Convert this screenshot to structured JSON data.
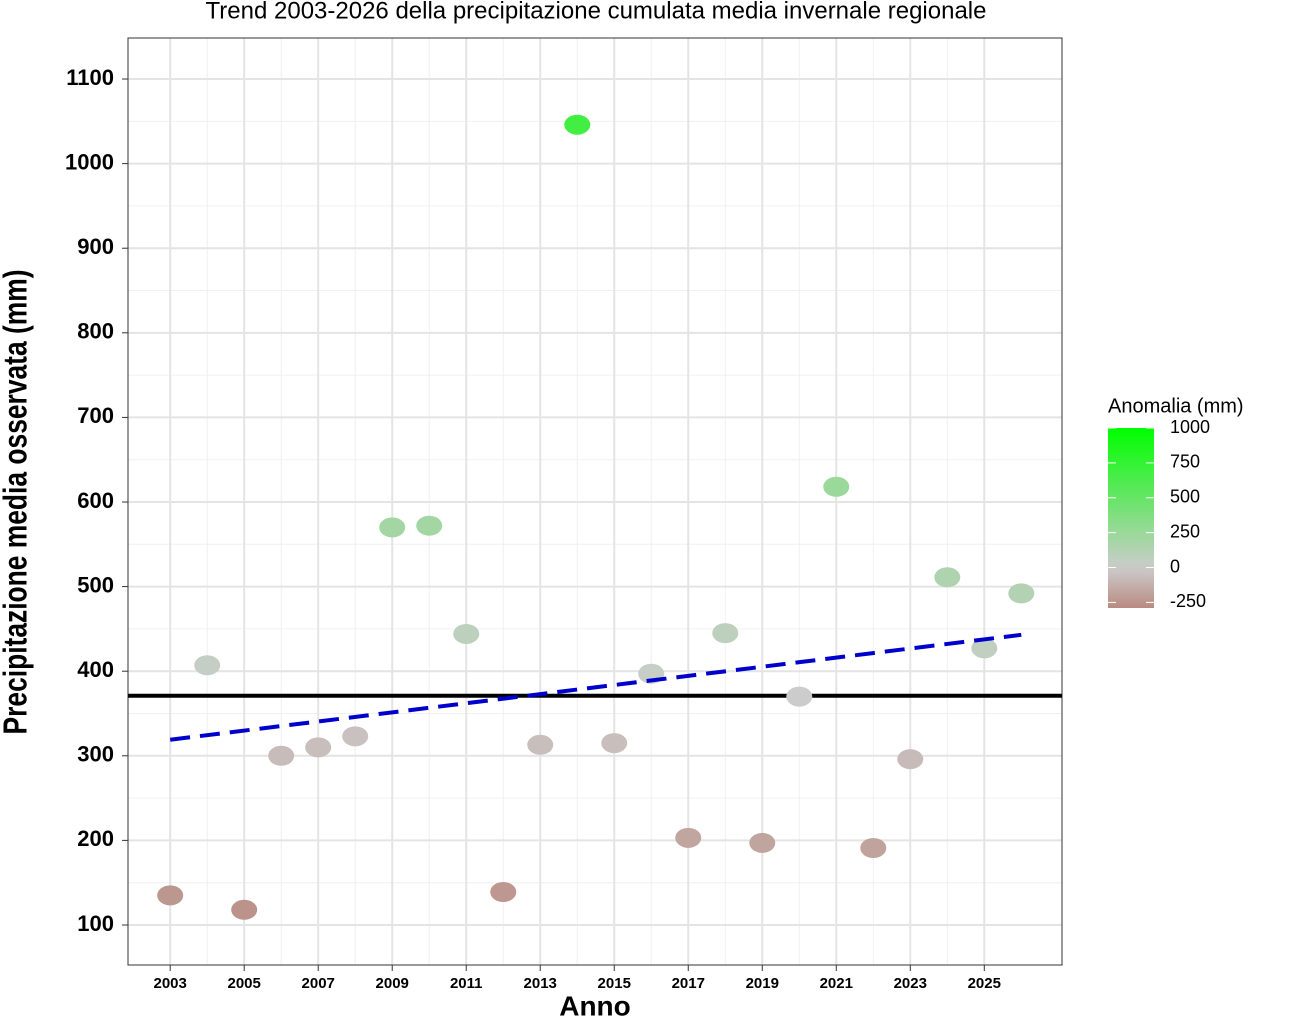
{
  "chart_data": {
    "type": "scatter",
    "title": "Trend 2003-2026 della precipitazione cumulata media invernale regionale",
    "x_label": "Anno",
    "y_label": "Precipitazione media osservata (mm)",
    "x": [
      2003,
      2004,
      2005,
      2006,
      2007,
      2008,
      2009,
      2010,
      2011,
      2012,
      2013,
      2014,
      2015,
      2016,
      2017,
      2018,
      2019,
      2020,
      2021,
      2022,
      2023,
      2024,
      2025,
      2026
    ],
    "values": [
      135,
      407,
      118,
      300,
      310,
      323,
      570,
      572,
      444,
      139,
      313,
      1046,
      315,
      397,
      203,
      445,
      197,
      370,
      618,
      191,
      296,
      511,
      427,
      492
    ],
    "xlim": [
      2001.86,
      2027.1
    ],
    "ylim": [
      52.7,
      1148.5
    ],
    "xticks": [
      2003,
      2005,
      2007,
      2009,
      2011,
      2013,
      2015,
      2017,
      2019,
      2021,
      2023,
      2025
    ],
    "yticks": [
      100,
      200,
      300,
      400,
      500,
      600,
      700,
      800,
      900,
      1000,
      1100
    ],
    "grid": true,
    "mean_line": {
      "value": 371,
      "color": "#000000"
    },
    "trend_line": {
      "x": [
        2003,
        2026
      ],
      "values": [
        319,
        443
      ],
      "color": "#0000cc"
    },
    "colorbar": {
      "title": "Anomalia (mm)",
      "lim": [
        -290,
        1000
      ],
      "ticks": [
        -250,
        0,
        250,
        500,
        750,
        1000
      ],
      "stops": [
        {
          "value": -300,
          "color": "#b8887e"
        },
        {
          "value": 0,
          "color": "#cccccc"
        },
        {
          "value": 1000,
          "color": "#00ff00"
        }
      ]
    }
  }
}
